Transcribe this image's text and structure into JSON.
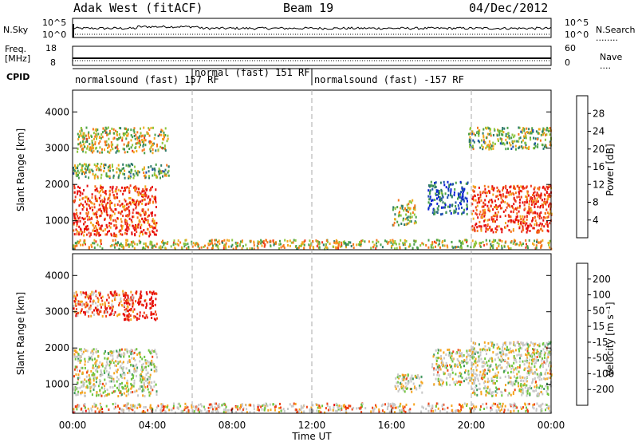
{
  "header": {
    "station": "Adak West (fitACF)",
    "beam": "Beam 19",
    "date": "04/Dec/2012"
  },
  "top_panel": {
    "left_label": "N.Sky",
    "right_label": "N.Search",
    "ticks_left": [
      "10^5",
      "10^0"
    ],
    "ticks_right": [
      "10^5",
      "10^0"
    ]
  },
  "freq_panel": {
    "left_label_line1": "Freq.",
    "left_label_line2": "[MHz]",
    "right_label": "Nave",
    "ticks_left": [
      "18",
      "8"
    ],
    "ticks_right": [
      "60",
      "0"
    ]
  },
  "cpid": {
    "label": "CPID",
    "segments": [
      {
        "text": "normalsound (fast) 157 RF",
        "start_hour": 0,
        "end_hour": 6
      },
      {
        "text": "normal (fast) 151 RF",
        "start_hour": 6,
        "end_hour": 12
      },
      {
        "text": "normalsound (fast) -157 RF",
        "start_hour": 12,
        "end_hour": 24
      }
    ]
  },
  "colors": {
    "power": [
      "#0a1fd6",
      "#1e4fb0",
      "#2e7b6a",
      "#4aa04a",
      "#8ec63e",
      "#f2a81c",
      "#f5761a",
      "#ef3a1e",
      "#e60d0d"
    ],
    "velocity": [
      "#e60d0d",
      "#ee4416",
      "#f5a51f",
      "#c8c8c8",
      "#c8c8c8",
      "#6ec43c",
      "#3f9a5e",
      "#2a64b8",
      "#1a2fc6"
    ],
    "guide": "#aaaaaa"
  },
  "chart_data": [
    {
      "type": "heatmap",
      "name": "power",
      "ylabel": "Slant Range [km]",
      "xlabel": "",
      "yticks": [
        "1000",
        "2000",
        "3000",
        "4000"
      ],
      "ylim": [
        200,
        4600
      ],
      "colorbar_label": "Power [dB]",
      "colorbar_ticks": [
        "4",
        "8",
        "12",
        "16",
        "20",
        "24",
        "28"
      ],
      "colorbar_range": [
        0,
        32
      ],
      "regions": [
        {
          "t0": 0.0,
          "t1": 4.2,
          "r0": 600,
          "r1": 2000,
          "level": 0.85
        },
        {
          "t0": 0.0,
          "t1": 4.8,
          "r0": 2200,
          "r1": 2600,
          "level": 0.45
        },
        {
          "t0": 0.2,
          "t1": 4.8,
          "r0": 2900,
          "r1": 3600,
          "level": 0.55
        },
        {
          "t0": 16.0,
          "t1": 17.2,
          "r0": 900,
          "r1": 1600,
          "level": 0.5
        },
        {
          "t0": 17.8,
          "t1": 19.8,
          "r0": 1200,
          "r1": 2100,
          "level": 0.2
        },
        {
          "t0": 20.0,
          "t1": 24.0,
          "r0": 700,
          "r1": 2000,
          "level": 0.85
        },
        {
          "t0": 19.8,
          "t1": 24.0,
          "r0": 3000,
          "r1": 3600,
          "level": 0.45
        },
        {
          "t0": 0.0,
          "t1": 24.0,
          "r0": 250,
          "r1": 500,
          "level": 0.55
        }
      ]
    },
    {
      "type": "heatmap",
      "name": "velocity",
      "ylabel": "Slant Range [km]",
      "xlabel": "Time UT",
      "yticks": [
        "1000",
        "2000",
        "3000",
        "4000"
      ],
      "ylim": [
        200,
        4600
      ],
      "xticks": [
        "00:00",
        "04:00",
        "08:00",
        "12:00",
        "16:00",
        "20:00",
        "00:00"
      ],
      "xlim": [
        0,
        24
      ],
      "colorbar_label": "Velocity [m s⁻¹]",
      "colorbar_ticks": [
        "-200",
        "-100",
        "-50",
        "-15",
        "15",
        "50",
        "100",
        "200"
      ],
      "regions": [
        {
          "t0": 0.0,
          "t1": 4.2,
          "r0": 700,
          "r1": 2000,
          "level": 0.45
        },
        {
          "t0": 2.5,
          "t1": 4.2,
          "r0": 2800,
          "r1": 3600,
          "level": 0.0
        },
        {
          "t0": 0.0,
          "t1": 3.0,
          "r0": 2900,
          "r1": 3600,
          "level": 0.2
        },
        {
          "t0": 16.0,
          "t1": 17.5,
          "r0": 800,
          "r1": 1300,
          "level": 0.45
        },
        {
          "t0": 18.0,
          "t1": 20.2,
          "r0": 1000,
          "r1": 2000,
          "level": 0.45
        },
        {
          "t0": 20.0,
          "t1": 24.0,
          "r0": 700,
          "r1": 2200,
          "level": 0.45
        },
        {
          "t0": 0.0,
          "t1": 24.0,
          "r0": 250,
          "r1": 500,
          "level": 0.35
        }
      ]
    }
  ]
}
